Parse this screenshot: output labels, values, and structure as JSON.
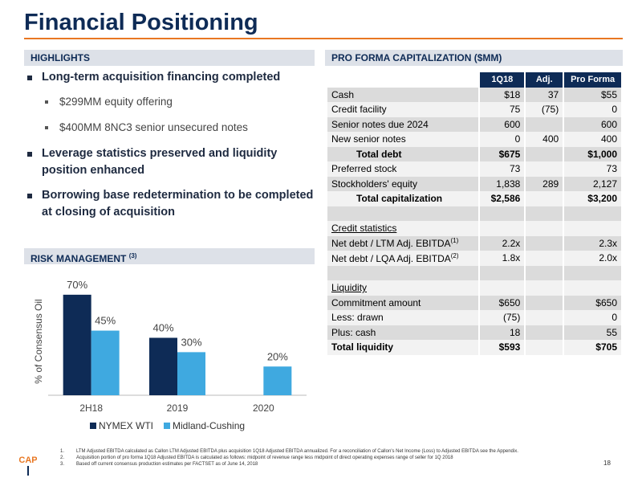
{
  "header": {
    "title": "Financial Positioning"
  },
  "highlights": {
    "heading": "HIGHLIGHTS",
    "bullets": [
      {
        "text": "Long-term acquisition financing completed",
        "subbullets": [
          "$299MM equity offering",
          "$400MM 8NC3 senior unsecured notes"
        ]
      },
      {
        "text": "Leverage statistics preserved and liquidity position enhanced",
        "subbullets": []
      },
      {
        "text": "Borrowing base redetermination to be completed at closing of acquisition",
        "subbullets": []
      }
    ]
  },
  "risk": {
    "heading": "RISK MANAGEMENT",
    "note": "(3)"
  },
  "chart_data": {
    "type": "bar",
    "y_label": "% of Consensus Oil",
    "categories": [
      "2H18",
      "2019",
      "2020"
    ],
    "series": [
      {
        "name": "NYMEX WTI",
        "color": "#0e2b56",
        "values": [
          70,
          40,
          null
        ],
        "value_labels": [
          "70%",
          "40%",
          null
        ]
      },
      {
        "name": "Midland-Cushing",
        "color": "#3fa9e0",
        "values": [
          45,
          30,
          20
        ],
        "value_labels": [
          "45%",
          "30%",
          "20%"
        ]
      }
    ],
    "ylim": [
      0,
      80
    ],
    "grid": false,
    "legend": "bottom"
  },
  "table": {
    "heading": "PRO FORMA CAPITALIZATION ($MM)",
    "columns": [
      "1Q18",
      "Adj.",
      "Pro Forma"
    ],
    "rows": [
      {
        "cells": [
          "Cash",
          "$18",
          "37",
          "$55"
        ]
      },
      {
        "cells": [
          "Credit facility",
          "75",
          "(75)",
          "0"
        ]
      },
      {
        "cells": [
          "Senior notes due 2024",
          "600",
          null,
          "600"
        ]
      },
      {
        "cells": [
          "New senior notes",
          "0",
          "400",
          "400"
        ]
      },
      {
        "cells": [
          "Total debt",
          "$675",
          null,
          "$1,000"
        ],
        "style": "total"
      },
      {
        "cells": [
          "Preferred stock",
          "73",
          null,
          "73"
        ]
      },
      {
        "cells": [
          "Stockholders' equity",
          "1,838",
          "289",
          "2,127"
        ]
      },
      {
        "cells": [
          "Total capitalization",
          "$2,586",
          null,
          "$3,200"
        ],
        "style": "total"
      },
      {
        "cells": [
          null,
          null,
          null,
          null
        ]
      },
      {
        "cells": [
          "Credit statistics",
          null,
          null,
          null
        ],
        "style": "heading"
      },
      {
        "cells": [
          "Net debt / LTM Adj. EBITDA",
          "2.2x",
          null,
          "2.3x"
        ],
        "note": "(1)"
      },
      {
        "cells": [
          "Net debt / LQA Adj. EBITDA",
          "1.8x",
          null,
          "2.0x"
        ],
        "note": "(2)"
      },
      {
        "cells": [
          null,
          null,
          null,
          null
        ]
      },
      {
        "cells": [
          "Liquidity",
          null,
          null,
          null
        ],
        "style": "heading"
      },
      {
        "cells": [
          "Commitment amount",
          "$650",
          null,
          "$650"
        ]
      },
      {
        "cells": [
          "Less: drawn",
          "(75)",
          null,
          "0"
        ]
      },
      {
        "cells": [
          "Plus: cash",
          "18",
          null,
          "55"
        ]
      },
      {
        "cells": [
          "Total liquidity",
          "$593",
          null,
          "$705"
        ],
        "style": "bold"
      }
    ]
  },
  "footer": {
    "notes": [
      {
        "number": "1.",
        "text": "LTM Adjusted EBITDA calculated as Callon LTM Adjusted EBITDA plus acquisition 1Q18 Adjusted EBITDA annualized. For a reconciliation of Callon's Net Income (Loss) to Adjusted EBITDA see the Appendix."
      },
      {
        "number": "2.",
        "text": "Acquisition portion of pro forma 1Q18 Adjusted EBITDA is calculated as follows: midpoint of revenue range less midpoint of direct operating expenses range of seller for 1Q 2018"
      },
      {
        "number": "3.",
        "text": "Based off current consensus production estimates per FACTSET as of June 14, 2018"
      }
    ],
    "page": "18",
    "logo": "CAP"
  }
}
